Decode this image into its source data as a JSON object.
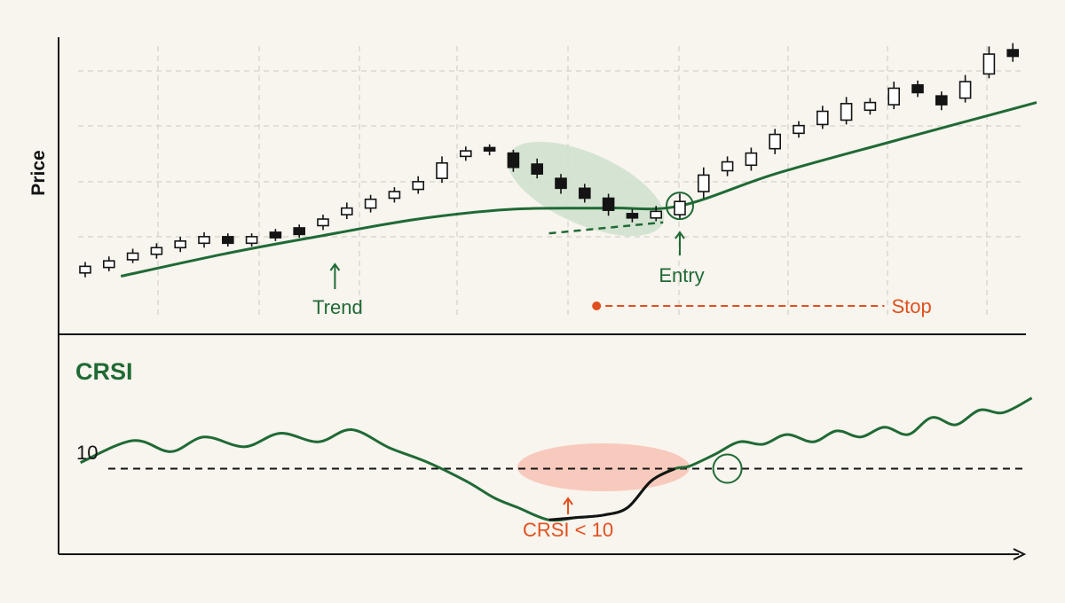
{
  "colors": {
    "background": "#f8f4ee",
    "trend_green": "#1f6a35",
    "stop_orange": "#e0501e",
    "highlight_green": "#cfe0cc",
    "highlight_red": "#f6c5b7",
    "ink": "#141414",
    "grid": "#d4d0ca"
  },
  "chart_data": [
    {
      "type": "candlestick",
      "ylabel": "Price",
      "grid": true,
      "candles": [
        {
          "x": 1,
          "open": 6.0,
          "close": 7.2,
          "high": 8.0,
          "low": 5.2,
          "bullish": true
        },
        {
          "x": 2,
          "open": 7.0,
          "close": 8.2,
          "high": 9.0,
          "low": 6.3,
          "bullish": true
        },
        {
          "x": 3,
          "open": 8.4,
          "close": 9.6,
          "high": 10.4,
          "low": 7.8,
          "bullish": true
        },
        {
          "x": 4,
          "open": 9.4,
          "close": 10.6,
          "high": 11.4,
          "low": 8.6,
          "bullish": true
        },
        {
          "x": 5,
          "open": 10.6,
          "close": 11.8,
          "high": 12.6,
          "low": 9.8,
          "bullish": true
        },
        {
          "x": 6,
          "open": 11.4,
          "close": 12.6,
          "high": 13.4,
          "low": 10.6,
          "bullish": true
        },
        {
          "x": 7,
          "open": 12.6,
          "close": 11.4,
          "high": 13.2,
          "low": 10.8,
          "bullish": false
        },
        {
          "x": 8,
          "open": 11.4,
          "close": 12.6,
          "high": 13.2,
          "low": 10.8,
          "bullish": true
        },
        {
          "x": 9,
          "open": 13.4,
          "close": 12.4,
          "high": 14.0,
          "low": 11.8,
          "bullish": false
        },
        {
          "x": 10,
          "open": 14.2,
          "close": 13.0,
          "high": 14.8,
          "low": 12.4,
          "bullish": false
        },
        {
          "x": 11,
          "open": 14.6,
          "close": 15.8,
          "high": 16.6,
          "low": 13.8,
          "bullish": true
        },
        {
          "x": 12,
          "open": 16.6,
          "close": 17.8,
          "high": 18.8,
          "low": 15.8,
          "bullish": true
        },
        {
          "x": 13,
          "open": 17.8,
          "close": 19.4,
          "high": 20.2,
          "low": 17.0,
          "bullish": true
        },
        {
          "x": 14,
          "open": 19.6,
          "close": 20.8,
          "high": 21.6,
          "low": 18.8,
          "bullish": true
        },
        {
          "x": 15,
          "open": 21.2,
          "close": 22.6,
          "high": 23.6,
          "low": 20.4,
          "bullish": true
        },
        {
          "x": 16,
          "open": 23.2,
          "close": 26.0,
          "high": 27.2,
          "low": 22.4,
          "bullish": true
        },
        {
          "x": 17,
          "open": 27.2,
          "close": 28.2,
          "high": 29.0,
          "low": 26.4,
          "bullish": true
        },
        {
          "x": 18,
          "open": 28.8,
          "close": 28.2,
          "high": 29.4,
          "low": 27.4,
          "bullish": false
        },
        {
          "x": 19,
          "open": 27.8,
          "close": 25.2,
          "high": 28.4,
          "low": 24.4,
          "bullish": false
        },
        {
          "x": 20,
          "open": 25.8,
          "close": 24.0,
          "high": 26.8,
          "low": 23.2,
          "bullish": false
        },
        {
          "x": 21,
          "open": 23.2,
          "close": 21.4,
          "high": 24.0,
          "low": 20.4,
          "bullish": false
        },
        {
          "x": 22,
          "open": 21.4,
          "close": 19.6,
          "high": 22.2,
          "low": 18.8,
          "bullish": false
        },
        {
          "x": 23,
          "open": 19.6,
          "close": 17.4,
          "high": 20.4,
          "low": 16.4,
          "bullish": false
        },
        {
          "x": 24,
          "open": 16.8,
          "close": 16.0,
          "high": 17.6,
          "low": 15.2,
          "bullish": false
        },
        {
          "x": 25,
          "open": 16.0,
          "close": 17.2,
          "high": 18.2,
          "low": 15.4,
          "bullish": true
        },
        {
          "x": 26,
          "open": 16.6,
          "close": 19.0,
          "high": 20.4,
          "low": 15.8,
          "bullish": true
        },
        {
          "x": 27,
          "open": 20.8,
          "close": 23.8,
          "high": 25.2,
          "low": 19.6,
          "bullish": true
        },
        {
          "x": 28,
          "open": 24.6,
          "close": 26.2,
          "high": 27.2,
          "low": 23.6,
          "bullish": true
        },
        {
          "x": 29,
          "open": 25.6,
          "close": 27.8,
          "high": 28.8,
          "low": 24.6,
          "bullish": true
        },
        {
          "x": 30,
          "open": 28.6,
          "close": 31.2,
          "high": 32.2,
          "low": 27.6,
          "bullish": true
        },
        {
          "x": 31,
          "open": 31.4,
          "close": 32.8,
          "high": 33.6,
          "low": 30.6,
          "bullish": true
        },
        {
          "x": 32,
          "open": 33.0,
          "close": 35.4,
          "high": 36.4,
          "low": 32.2,
          "bullish": true
        },
        {
          "x": 33,
          "open": 33.8,
          "close": 36.8,
          "high": 38.0,
          "low": 33.0,
          "bullish": true
        },
        {
          "x": 34,
          "open": 35.6,
          "close": 37.0,
          "high": 37.8,
          "low": 34.8,
          "bullish": true
        },
        {
          "x": 35,
          "open": 36.6,
          "close": 39.6,
          "high": 40.8,
          "low": 35.8,
          "bullish": true
        },
        {
          "x": 36,
          "open": 40.2,
          "close": 38.8,
          "high": 41.0,
          "low": 38.0,
          "bullish": false
        },
        {
          "x": 37,
          "open": 38.2,
          "close": 36.6,
          "high": 39.0,
          "low": 35.6,
          "bullish": false
        },
        {
          "x": 38,
          "open": 37.8,
          "close": 40.8,
          "high": 42.0,
          "low": 37.0,
          "bullish": true
        },
        {
          "x": 39,
          "open": 42.2,
          "close": 45.8,
          "high": 47.2,
          "low": 41.4,
          "bullish": true
        },
        {
          "x": 40,
          "open": 46.6,
          "close": 45.4,
          "high": 47.8,
          "low": 44.4,
          "bullish": false
        }
      ],
      "trend_line": [
        {
          "x": 2.5,
          "y": 5.4
        },
        {
          "x": 7,
          "y": 9.6
        },
        {
          "x": 11,
          "y": 12.8
        },
        {
          "x": 15,
          "y": 15.8
        },
        {
          "x": 19,
          "y": 17.6
        },
        {
          "x": 23,
          "y": 17.8
        },
        {
          "x": 26,
          "y": 18.2
        },
        {
          "x": 30,
          "y": 24.0
        },
        {
          "x": 35,
          "y": 30.0
        },
        {
          "x": 41,
          "y": 37.0
        }
      ],
      "pullback_line": [
        {
          "x": 20.5,
          "y": 13.2
        },
        {
          "x": 25.3,
          "y": 15.2
        }
      ],
      "annotations": [
        {
          "id": "trend",
          "text": "Trend",
          "x": 11.5,
          "y": 11.5,
          "color": "trend_green"
        },
        {
          "id": "entry",
          "text": "Entry",
          "x": 26.0,
          "y": 18.2,
          "color": "trend_green"
        },
        {
          "id": "stop",
          "text": "Stop",
          "x": 22.5,
          "x_end": 34.6,
          "y": 4.0,
          "color": "stop_orange"
        }
      ]
    },
    {
      "type": "line",
      "title": "CRSI",
      "ytick_labels": [
        "10"
      ],
      "threshold": 10,
      "series": [
        {
          "x": [
            0.8,
            3,
            4.6,
            6,
            7.7,
            9.2,
            10.8,
            12.2,
            13.8,
            15.3,
            17,
            18.2,
            19.2,
            20.5,
            21.7,
            22.8,
            23.8,
            24.8,
            25.8,
            26.4,
            27.5,
            28.5,
            29.5,
            30.5,
            31.6,
            32.6,
            33.6,
            34.6,
            35.6,
            36.6,
            37.6,
            38.6,
            39.6,
            40.8
          ],
          "y": [
            12.5,
            21.5,
            17,
            23,
            19,
            24.5,
            21,
            26,
            18.5,
            13,
            5,
            -2,
            -6,
            -11,
            -10,
            -9,
            -6,
            5,
            10,
            11,
            16,
            21,
            20,
            24,
            21,
            25.5,
            23,
            27,
            24,
            31,
            28,
            34,
            33,
            39
          ]
        }
      ],
      "annotations": [
        {
          "id": "crsi-low",
          "text": "CRSI < 10",
          "x": 21.3,
          "y": -23,
          "color": "stop_orange"
        }
      ]
    }
  ]
}
